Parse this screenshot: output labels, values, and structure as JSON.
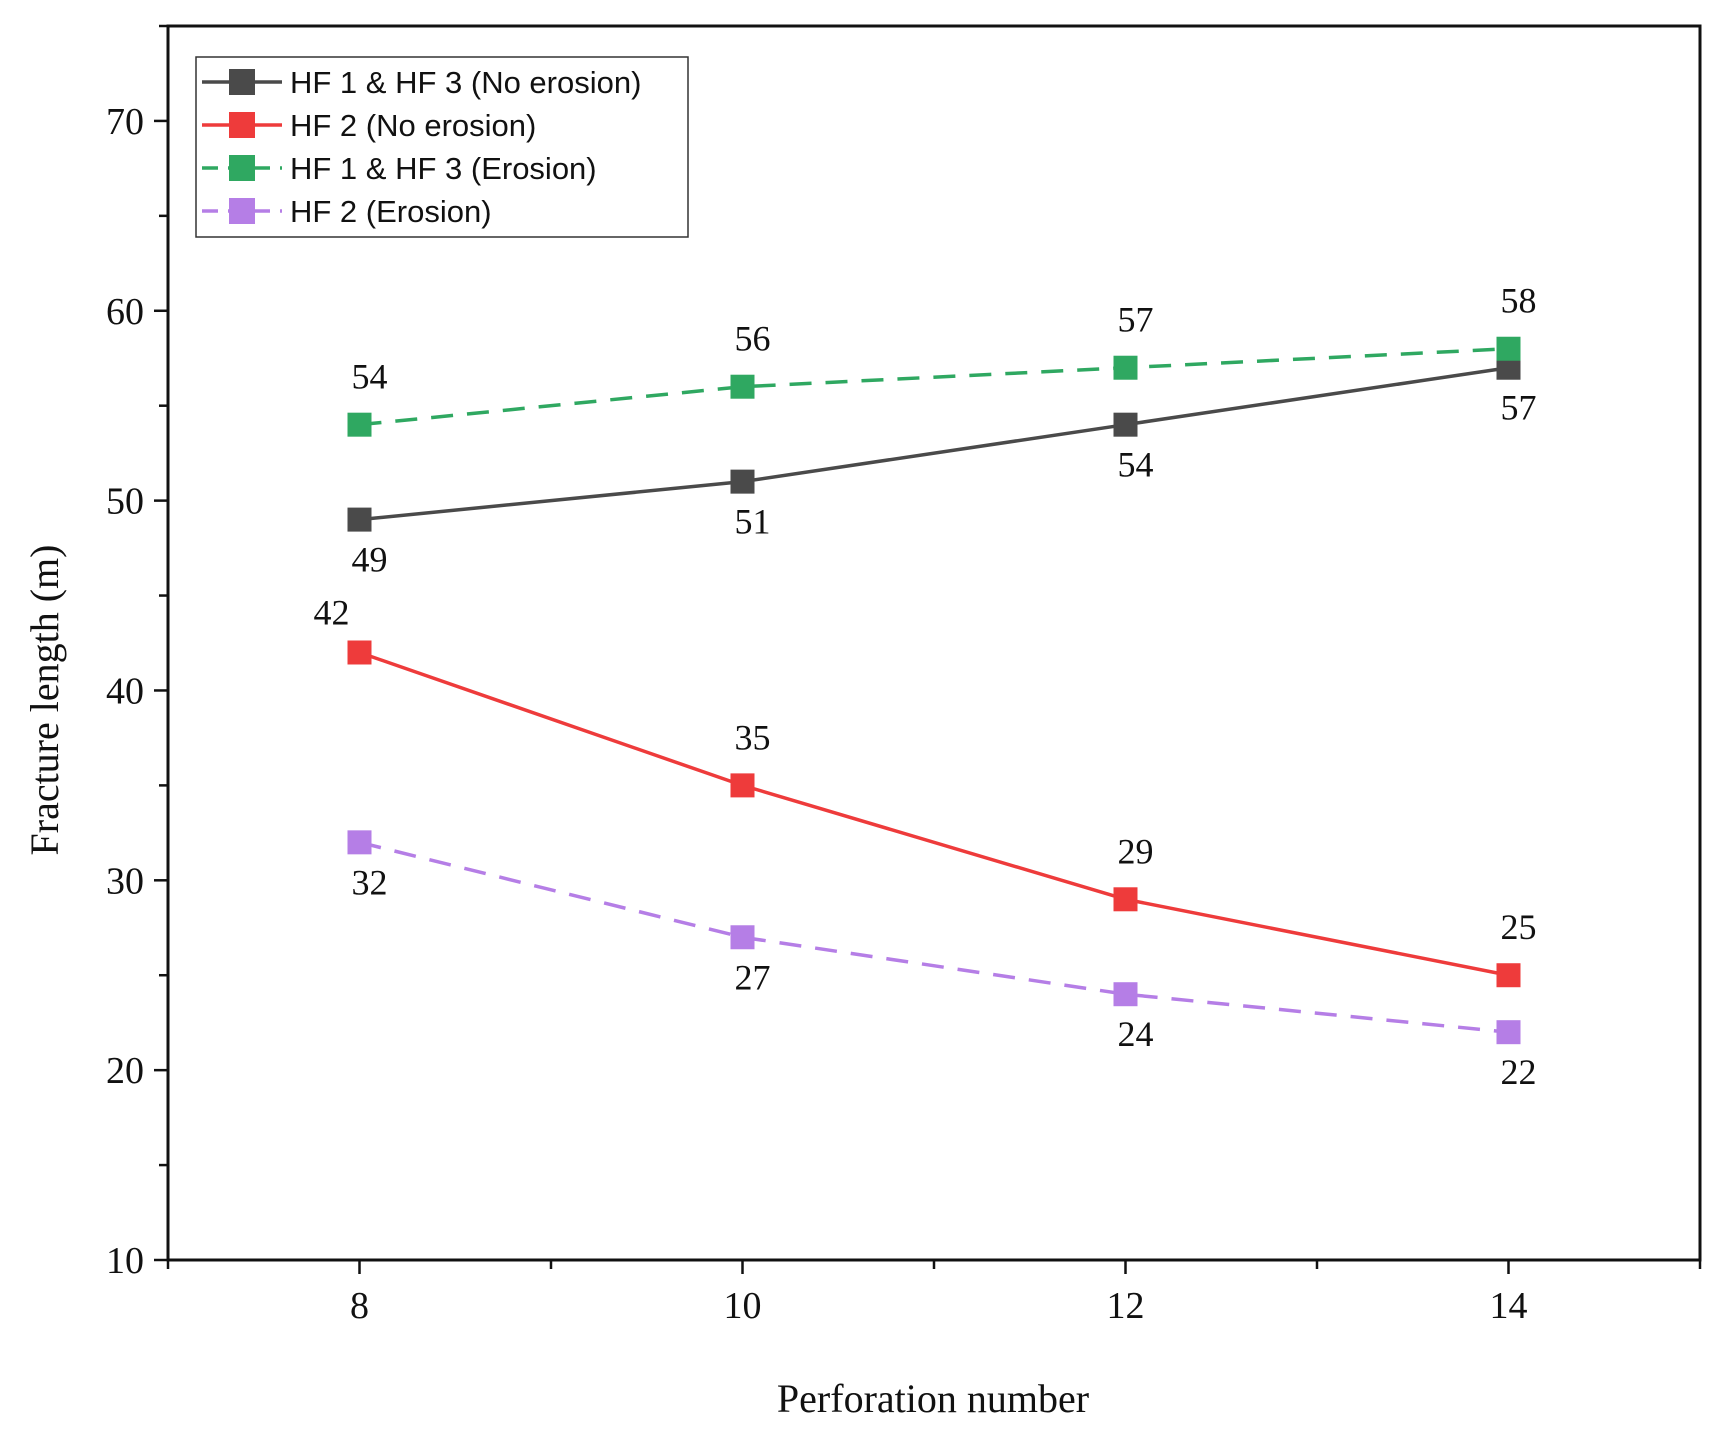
{
  "chart_data": {
    "type": "line",
    "title": "",
    "xlabel": "Perforation number",
    "ylabel": "Fracture length (m)",
    "xlim": [
      7,
      15
    ],
    "ylim": [
      10,
      75
    ],
    "x_ticks": [
      8,
      10,
      12,
      14
    ],
    "y_ticks": [
      10,
      20,
      30,
      40,
      50,
      60,
      70
    ],
    "grid": false,
    "legend_position": "top-left",
    "x": [
      8,
      10,
      12,
      14
    ],
    "series": [
      {
        "name": "HF 1 & HF 3 (No erosion)",
        "values": [
          49,
          51,
          54,
          57
        ],
        "color": "#4a4a4a",
        "dash": "solid",
        "label_pos": [
          "below",
          "below",
          "below",
          "below"
        ]
      },
      {
        "name": "HF 2 (No erosion)",
        "values": [
          42,
          35,
          29,
          25
        ],
        "color": "#ee3b3b",
        "dash": "solid",
        "label_pos": [
          "above-left",
          "above",
          "above",
          "above"
        ]
      },
      {
        "name": "HF 1 & HF 3 (Erosion)",
        "values": [
          54,
          56,
          57,
          58
        ],
        "color": "#2fa861",
        "dash": "dashed",
        "label_pos": [
          "above",
          "above",
          "above",
          "above"
        ]
      },
      {
        "name": "HF 2 (Erosion)",
        "values": [
          32,
          27,
          24,
          22
        ],
        "color": "#b57ee6",
        "dash": "dashed",
        "label_pos": [
          "below",
          "below",
          "below",
          "below"
        ]
      }
    ]
  }
}
